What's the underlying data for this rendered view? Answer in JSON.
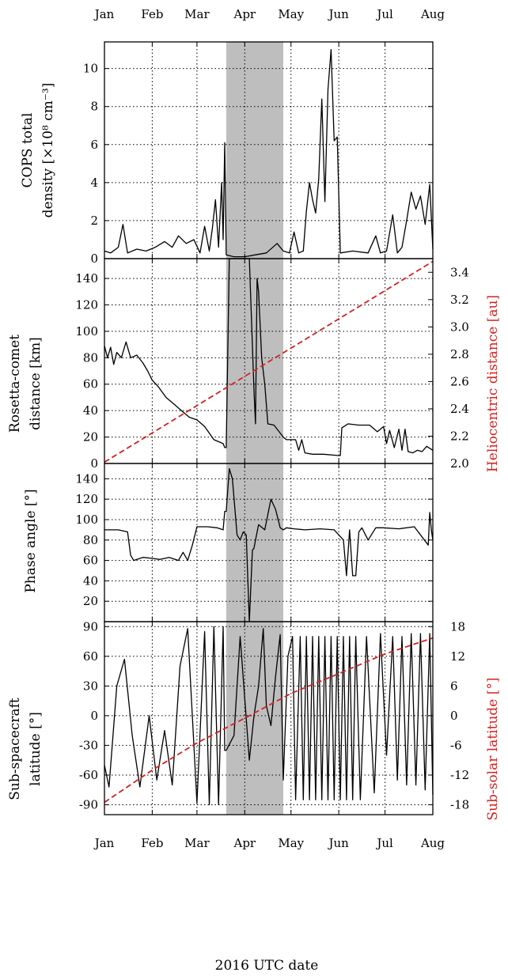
{
  "figure": {
    "xlabel": "2016 UTC date",
    "months": [
      "Jan",
      "Feb",
      "Mar",
      "Apr",
      "May",
      "Jun",
      "Jul",
      "Aug"
    ],
    "month_starts": [
      "2016-01-01",
      "2016-02-01",
      "2016-03-01",
      "2016-04-01",
      "2016-05-01",
      "2016-06-01",
      "2016-07-01",
      "2016-08-01"
    ],
    "x_range": [
      "2016-01-01",
      "2016-08-01"
    ],
    "shaded_interval": [
      "2016-03-20",
      "2016-04-26"
    ],
    "grid": "dotted",
    "colors": {
      "primary": "#000000",
      "secondary": "#d62020",
      "shade": "#bebebe"
    }
  },
  "chart_data": [
    {
      "type": "line",
      "ylabel_line1": "COPS total",
      "ylabel_line2": "density [×10⁸ cm⁻³]",
      "ylim": [
        0,
        11.4
      ],
      "yticks": [
        0,
        2,
        4,
        6,
        8,
        10
      ],
      "series": [
        {
          "style": "solid-black",
          "x": [
            "2016-01-01",
            "2016-01-05",
            "2016-01-10",
            "2016-01-13",
            "2016-01-16",
            "2016-01-22",
            "2016-01-28",
            "2016-02-03",
            "2016-02-09",
            "2016-02-14",
            "2016-02-18",
            "2016-02-23",
            "2016-02-28",
            "2016-03-03",
            "2016-03-06",
            "2016-03-09",
            "2016-03-11",
            "2016-03-13",
            "2016-03-15",
            "2016-03-17",
            "2016-03-18",
            "2016-03-19",
            "2016-03-20",
            "2016-03-25",
            "2016-04-01",
            "2016-04-08",
            "2016-04-15",
            "2016-04-22",
            "2016-04-26",
            "2016-04-30",
            "2016-05-03",
            "2016-05-06",
            "2016-05-09",
            "2016-05-11",
            "2016-05-13",
            "2016-05-15",
            "2016-05-17",
            "2016-05-19",
            "2016-05-21",
            "2016-05-23",
            "2016-05-25",
            "2016-05-27",
            "2016-05-29",
            "2016-05-31",
            "2016-06-02",
            "2016-06-10",
            "2016-06-20",
            "2016-06-25",
            "2016-06-28",
            "2016-07-02",
            "2016-07-06",
            "2016-07-09",
            "2016-07-12",
            "2016-07-15",
            "2016-07-18",
            "2016-07-21",
            "2016-07-24",
            "2016-07-27",
            "2016-07-30",
            "2016-08-01"
          ],
          "y": [
            0.4,
            0.3,
            0.6,
            1.8,
            0.3,
            0.5,
            0.4,
            0.6,
            0.9,
            0.6,
            1.2,
            0.8,
            1.0,
            0.3,
            1.7,
            0.4,
            1.6,
            3.1,
            0.6,
            4.0,
            1.0,
            6.1,
            0.2,
            0.1,
            0.1,
            0.2,
            0.3,
            0.8,
            0.4,
            0.3,
            1.4,
            0.3,
            0.4,
            2.5,
            4.0,
            3.1,
            2.4,
            4.2,
            8.4,
            3.0,
            8.9,
            11.0,
            6.2,
            6.4,
            0.3,
            0.4,
            0.3,
            1.2,
            0.3,
            0.4,
            2.3,
            0.3,
            0.6,
            2.0,
            3.5,
            2.6,
            3.3,
            1.8,
            3.9,
            0.5
          ]
        }
      ]
    },
    {
      "type": "line",
      "ylabel_line1": "Rosetta-comet",
      "ylabel_line2": "distance [km]",
      "ylim": [
        0,
        155
      ],
      "yticks": [
        0,
        20,
        40,
        60,
        80,
        100,
        120,
        140
      ],
      "y2label": "Heliocentric distance [au]",
      "y2lim": [
        2.0,
        3.5
      ],
      "y2ticks": [
        "2.0",
        "2.2",
        "2.4",
        "2.6",
        "2.8",
        "3.0",
        "3.2",
        "3.4"
      ],
      "series": [
        {
          "style": "solid-black",
          "x": [
            "2016-01-01",
            "2016-01-03",
            "2016-01-05",
            "2016-01-07",
            "2016-01-09",
            "2016-01-12",
            "2016-01-15",
            "2016-01-18",
            "2016-01-22",
            "2016-01-26",
            "2016-01-29",
            "2016-02-01",
            "2016-02-05",
            "2016-02-10",
            "2016-02-15",
            "2016-02-20",
            "2016-02-25",
            "2016-03-01",
            "2016-03-06",
            "2016-03-12",
            "2016-03-18",
            "2016-03-19",
            "2016-03-20",
            "2016-03-22",
            "2016-03-28",
            "2016-04-04",
            "2016-04-07",
            "2016-04-08",
            "2016-04-09",
            "2016-04-10",
            "2016-04-12",
            "2016-04-14",
            "2016-04-16",
            "2016-04-20",
            "2016-04-26",
            "2016-04-28",
            "2016-05-04",
            "2016-05-06",
            "2016-05-08",
            "2016-05-10",
            "2016-05-15",
            "2016-05-22",
            "2016-06-01",
            "2016-06-02",
            "2016-06-03",
            "2016-06-07",
            "2016-06-14",
            "2016-06-21",
            "2016-06-26",
            "2016-06-30",
            "2016-07-02",
            "2016-07-04",
            "2016-07-07",
            "2016-07-10",
            "2016-07-12",
            "2016-07-14",
            "2016-07-16",
            "2016-07-19",
            "2016-07-22",
            "2016-07-25",
            "2016-07-28",
            "2016-08-01"
          ],
          "y": [
            89,
            80,
            88,
            75,
            84,
            80,
            92,
            80,
            82,
            76,
            70,
            63,
            58,
            50,
            45,
            40,
            35,
            33,
            28,
            18,
            15,
            12,
            12,
            155,
            155,
            155,
            55,
            30,
            140,
            130,
            80,
            60,
            30,
            29,
            20,
            18,
            18,
            10,
            18,
            8,
            7,
            7,
            6,
            6,
            27,
            30,
            29,
            29,
            24,
            28,
            15,
            25,
            12,
            26,
            10,
            26,
            9,
            8,
            10,
            9,
            13,
            10
          ]
        },
        {
          "style": "dashed-red",
          "axis": "y2",
          "x": [
            "2016-01-01",
            "2016-08-01"
          ],
          "y": [
            2.01,
            3.48
          ]
        }
      ]
    },
    {
      "type": "line",
      "ylabel_line1": "",
      "ylabel_line2": "Phase angle [°]",
      "ylim": [
        0,
        155
      ],
      "yticks": [
        20,
        40,
        60,
        80,
        100,
        120,
        140
      ],
      "series": [
        {
          "style": "solid-black",
          "x": [
            "2016-01-01",
            "2016-01-10",
            "2016-01-16",
            "2016-01-18",
            "2016-01-20",
            "2016-01-26",
            "2016-02-01",
            "2016-02-06",
            "2016-02-12",
            "2016-02-18",
            "2016-02-21",
            "2016-02-24",
            "2016-02-27",
            "2016-03-01",
            "2016-03-08",
            "2016-03-14",
            "2016-03-18",
            "2016-03-19",
            "2016-03-20",
            "2016-03-22",
            "2016-03-24",
            "2016-03-27",
            "2016-03-29",
            "2016-03-31",
            "2016-04-02",
            "2016-04-04",
            "2016-04-06",
            "2016-04-07",
            "2016-04-08",
            "2016-04-10",
            "2016-04-14",
            "2016-04-18",
            "2016-04-21",
            "2016-04-24",
            "2016-04-26",
            "2016-04-28",
            "2016-05-03",
            "2016-05-10",
            "2016-05-20",
            "2016-05-29",
            "2016-06-01",
            "2016-06-04",
            "2016-06-06",
            "2016-06-08",
            "2016-06-10",
            "2016-06-12",
            "2016-06-14",
            "2016-06-16",
            "2016-06-20",
            "2016-06-25",
            "2016-06-30",
            "2016-07-10",
            "2016-07-20",
            "2016-07-29",
            "2016-07-30",
            "2016-07-31",
            "2016-08-01"
          ],
          "y": [
            90,
            90,
            88,
            65,
            60,
            63,
            62,
            61,
            63,
            60,
            68,
            60,
            75,
            93,
            93,
            92,
            90,
            108,
            108,
            150,
            140,
            85,
            80,
            88,
            85,
            0,
            70,
            72,
            80,
            95,
            90,
            120,
            110,
            92,
            90,
            92,
            91,
            90,
            91,
            90,
            85,
            80,
            45,
            90,
            45,
            45,
            88,
            92,
            80,
            92,
            92,
            91,
            93,
            75,
            107,
            90,
            80
          ]
        }
      ]
    },
    {
      "type": "line",
      "ylabel_line1": "Sub-spacecraft",
      "ylabel_line2": "latitude [°]",
      "ylim": [
        -100,
        95
      ],
      "yticks": [
        -90,
        -60,
        -30,
        0,
        30,
        60,
        90
      ],
      "y2label": "Sub-solar latitude [°]",
      "y2lim": [
        -20,
        19
      ],
      "y2ticks": [
        "-18",
        "-12",
        "-6",
        "0",
        "6",
        "12",
        "18"
      ],
      "series": [
        {
          "style": "solid-black",
          "x": [
            "2016-01-01",
            "2016-01-04",
            "2016-01-09",
            "2016-01-14",
            "2016-01-19",
            "2016-01-24",
            "2016-01-30",
            "2016-02-04",
            "2016-02-09",
            "2016-02-14",
            "2016-02-19",
            "2016-02-24",
            "2016-03-01",
            "2016-03-06",
            "2016-03-09",
            "2016-03-12",
            "2016-03-15",
            "2016-03-18",
            "2016-03-19",
            "2016-03-20",
            "2016-03-25",
            "2016-03-29",
            "2016-04-04",
            "2016-04-07",
            "2016-04-10",
            "2016-04-13",
            "2016-04-15",
            "2016-04-18",
            "2016-04-21",
            "2016-04-24",
            "2016-04-26",
            "2016-04-29",
            "2016-05-02",
            "2016-05-04",
            "2016-05-07",
            "2016-05-09",
            "2016-05-11",
            "2016-05-13",
            "2016-05-15",
            "2016-05-17",
            "2016-05-19",
            "2016-05-21",
            "2016-05-23",
            "2016-05-25",
            "2016-05-27",
            "2016-05-29",
            "2016-05-31",
            "2016-06-02",
            "2016-06-04",
            "2016-06-06",
            "2016-06-08",
            "2016-06-10",
            "2016-06-12",
            "2016-06-15",
            "2016-06-19",
            "2016-06-24",
            "2016-06-28",
            "2016-07-02",
            "2016-07-06",
            "2016-07-09",
            "2016-07-12",
            "2016-07-15",
            "2016-07-18",
            "2016-07-21",
            "2016-07-24",
            "2016-07-27",
            "2016-07-30",
            "2016-08-01"
          ],
          "y": [
            -50,
            -72,
            30,
            57,
            -20,
            -72,
            0,
            -65,
            -15,
            -70,
            50,
            88,
            -88,
            85,
            -90,
            90,
            -90,
            90,
            -35,
            -35,
            -20,
            80,
            -45,
            0,
            30,
            88,
            10,
            -10,
            40,
            82,
            -65,
            60,
            80,
            -85,
            80,
            -85,
            80,
            -85,
            80,
            -85,
            80,
            -85,
            80,
            -85,
            80,
            -85,
            80,
            -85,
            80,
            -85,
            80,
            -85,
            80,
            -85,
            80,
            -78,
            83,
            -40,
            80,
            -65,
            80,
            -70,
            83,
            -70,
            83,
            -75,
            83,
            -80
          ]
        },
        {
          "style": "dashed-red",
          "axis": "y2",
          "x": [
            "2016-01-01",
            "2016-02-01",
            "2016-03-01",
            "2016-04-01",
            "2016-05-01",
            "2016-06-01",
            "2016-07-01",
            "2016-08-01"
          ],
          "y": [
            -17.5,
            -11.0,
            -5.5,
            -0.5,
            4.5,
            8.5,
            12.5,
            15.7
          ]
        }
      ]
    }
  ]
}
